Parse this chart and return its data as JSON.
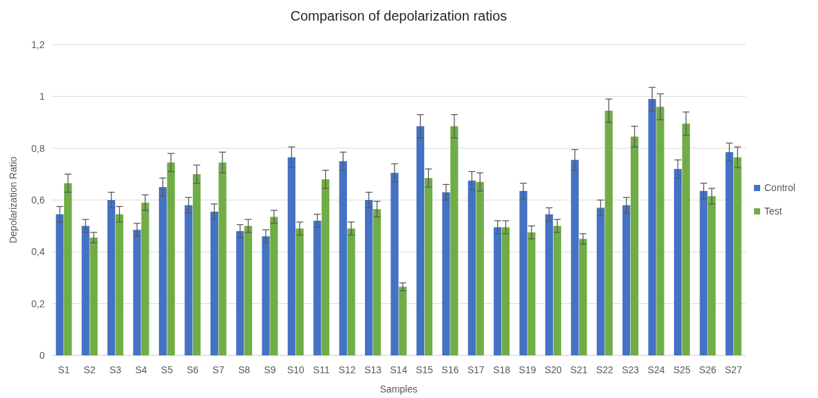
{
  "chart_data": {
    "type": "bar",
    "title": "Comparison of depolarization ratios",
    "xlabel": "Samples",
    "ylabel": "Depolarization Ratio",
    "categories": [
      "S1",
      "S2",
      "S3",
      "S4",
      "S5",
      "S6",
      "S7",
      "S8",
      "S9",
      "S10",
      "S11",
      "S12",
      "S13",
      "S14",
      "S15",
      "S16",
      "S17",
      "S18",
      "S19",
      "S20",
      "S21",
      "S22",
      "S23",
      "S24",
      "S25",
      "S26",
      "S27"
    ],
    "series": [
      {
        "name": "Control",
        "color": "#4472c4",
        "values": [
          0.545,
          0.5,
          0.6,
          0.485,
          0.65,
          0.58,
          0.555,
          0.48,
          0.46,
          0.765,
          0.52,
          0.75,
          0.6,
          0.705,
          0.885,
          0.63,
          0.675,
          0.495,
          0.635,
          0.545,
          0.755,
          0.57,
          0.58,
          0.99,
          0.72,
          0.635,
          0.785
        ],
        "errors": [
          0.03,
          0.025,
          0.03,
          0.025,
          0.035,
          0.03,
          0.03,
          0.025,
          0.025,
          0.04,
          0.025,
          0.035,
          0.03,
          0.035,
          0.045,
          0.03,
          0.035,
          0.025,
          0.03,
          0.025,
          0.04,
          0.03,
          0.03,
          0.045,
          0.035,
          0.03,
          0.035
        ]
      },
      {
        "name": "Test",
        "color": "#70ad47",
        "values": [
          0.665,
          0.455,
          0.545,
          0.59,
          0.745,
          0.7,
          0.745,
          0.5,
          0.535,
          0.49,
          0.68,
          0.49,
          0.565,
          0.265,
          0.685,
          0.885,
          0.67,
          0.495,
          0.475,
          0.5,
          0.45,
          0.945,
          0.845,
          0.96,
          0.895,
          0.615,
          0.765
        ],
        "errors": [
          0.035,
          0.02,
          0.03,
          0.03,
          0.035,
          0.035,
          0.04,
          0.025,
          0.025,
          0.025,
          0.035,
          0.025,
          0.03,
          0.015,
          0.035,
          0.045,
          0.035,
          0.025,
          0.025,
          0.025,
          0.02,
          0.045,
          0.04,
          0.05,
          0.045,
          0.03,
          0.04
        ]
      }
    ],
    "ylim": [
      0,
      1.2
    ],
    "yticks": [
      0,
      {
        "value": 0.2,
        "label": "0,2"
      },
      {
        "value": 0.4,
        "label": "0,4"
      },
      {
        "value": 0.6,
        "label": "0,6"
      },
      {
        "value": 0.8,
        "label": "0,8"
      },
      1,
      {
        "value": 1.2,
        "label": "1,2"
      }
    ],
    "grid": "y",
    "legend": "right"
  }
}
